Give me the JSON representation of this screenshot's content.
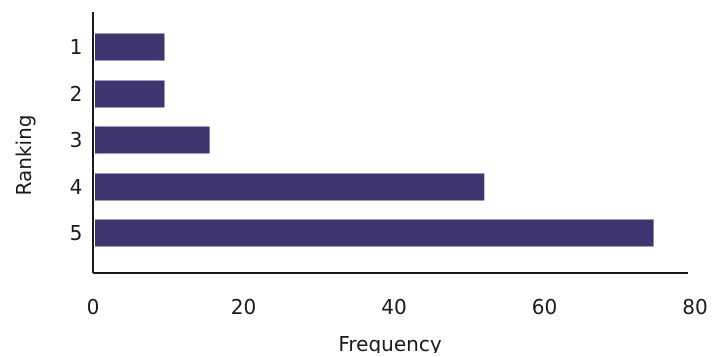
{
  "chart_data": {
    "type": "bar",
    "orientation": "horizontal",
    "categories": [
      "1",
      "2",
      "3",
      "4",
      "5"
    ],
    "values": [
      9.5,
      9.5,
      15.5,
      52,
      74.5
    ],
    "xlabel": "Frequency",
    "ylabel": "Ranking",
    "xlim": [
      0,
      80
    ],
    "xticks": [
      "0",
      "20",
      "40",
      "60",
      "80"
    ],
    "grid": false,
    "bar_color": "#3e3470",
    "axis_color": "#1a1a1a"
  }
}
